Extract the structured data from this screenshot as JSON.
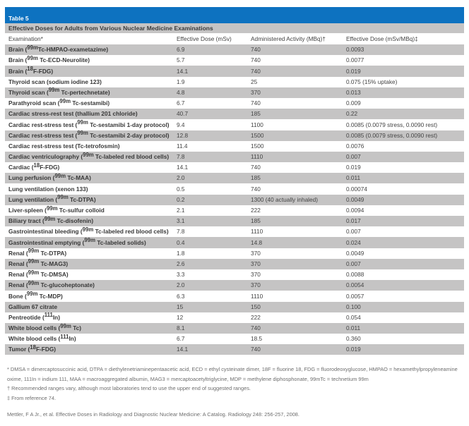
{
  "colors": {
    "accent_blue": "#0d72c0",
    "stripe_gray": "#c5c4c4"
  },
  "table": {
    "title": "Table 5",
    "subtitle": "Effective Doses for Adults from Various Nuclear Medicine Examinations",
    "columns": {
      "examination": "Examination*",
      "effective_dose": "Effective Dose (mSv)",
      "administered_activity": "Administered Activity (MBq)†",
      "effective_dose_per_mbq": "Effective Dose (mSv/MBq)‡"
    },
    "rows": [
      {
        "exam_pre": "Brain (",
        "exam_sup": "99m",
        "exam_post": "Tc-HMPAO-exametazime)",
        "dose": "6.9",
        "activity": "740",
        "per_mbq": "0.0093"
      },
      {
        "exam_pre": "Brain (",
        "exam_sup": "99m",
        "exam_post": " Tc-ECD-Neurolite)",
        "dose": "5.7",
        "activity": "740",
        "per_mbq": "0.0077"
      },
      {
        "exam_pre": "Brain (",
        "exam_sup": "18",
        "exam_post": "F-FDG)",
        "dose": "14.1",
        "activity": "740",
        "per_mbq": "0.019"
      },
      {
        "exam_pre": "Thyroid scan (sodium iodine 123)",
        "exam_sup": "",
        "exam_post": "",
        "dose": "1.9",
        "activity": "25",
        "per_mbq": "0.075 (15% uptake)"
      },
      {
        "exam_pre": "Thyroid scan (",
        "exam_sup": "99m",
        "exam_post": " Tc-pertechnetate)",
        "dose": "4.8",
        "activity": "370",
        "per_mbq": "0.013"
      },
      {
        "exam_pre": "Parathyroid scan (",
        "exam_sup": "99m",
        "exam_post": " Tc-sestamibi)",
        "dose": "6.7",
        "activity": "740",
        "per_mbq": "0.009"
      },
      {
        "exam_pre": "Cardiac stress-rest test (thallium 201 chloride)",
        "exam_sup": "",
        "exam_post": "",
        "dose": "40.7",
        "activity": "185",
        "per_mbq": "0.22"
      },
      {
        "exam_pre": "Cardiac rest-stress test (",
        "exam_sup": "99m",
        "exam_post": " Tc-sestamibi 1-day protocol)",
        "dose": "9.4",
        "activity": "1100",
        "per_mbq": "0.0085 (0.0079 stress, 0.0090 rest)"
      },
      {
        "exam_pre": "Cardiac rest-stress test (",
        "exam_sup": "99m",
        "exam_post": " Tc-sestamibi 2-day protocol)",
        "dose": "12.8",
        "activity": "1500",
        "per_mbq": "0.0085 (0.0079 stress, 0.0090 rest)"
      },
      {
        "exam_pre": "Cardiac rest-stress test (Tc-tetrofosmin)",
        "exam_sup": "",
        "exam_post": "",
        "dose": "11.4",
        "activity": "1500",
        "per_mbq": "0.0076"
      },
      {
        "exam_pre": "Cardiac ventriculography (",
        "exam_sup": "99m",
        "exam_post": " Tc-labeled red blood cells)",
        "dose": "7.8",
        "activity": "1110",
        "per_mbq": "0.007"
      },
      {
        "exam_pre": "Cardiac (",
        "exam_sup": "18",
        "exam_post": "F-FDG)",
        "dose": "14.1",
        "activity": "740",
        "per_mbq": "0.019"
      },
      {
        "exam_pre": "Lung perfusion (",
        "exam_sup": "99m",
        "exam_post": " Tc-MAA)",
        "dose": "2.0",
        "activity": "185",
        "per_mbq": "0.011"
      },
      {
        "exam_pre": "Lung ventilation (xenon 133)",
        "exam_sup": "",
        "exam_post": "",
        "dose": "0.5",
        "activity": "740",
        "per_mbq": "0.00074"
      },
      {
        "exam_pre": "Lung ventilation (",
        "exam_sup": "99m",
        "exam_post": " Tc-DTPA)",
        "dose": "0.2",
        "activity": "1300 (40 actually inhaled)",
        "per_mbq": "0.0049"
      },
      {
        "exam_pre": "Liver-spleen (",
        "exam_sup": "99m",
        "exam_post": " Tc-sulfur colloid",
        "dose": "2.1",
        "activity": "222",
        "per_mbq": "0.0094"
      },
      {
        "exam_pre": "Biliary tract (",
        "exam_sup": "99m",
        "exam_post": " Tc-disofenin)",
        "dose": "3.1",
        "activity": "185",
        "per_mbq": "0.017"
      },
      {
        "exam_pre": "Gastrointestinal bleeding (",
        "exam_sup": "99m",
        "exam_post": " Tc-labeled red blood cells)",
        "dose": "7.8",
        "activity": "1110",
        "per_mbq": "0.007"
      },
      {
        "exam_pre": "Gastrointestinal emptying (",
        "exam_sup": "99m",
        "exam_post": " Tc-labeled solids)",
        "dose": "0.4",
        "activity": "14.8",
        "per_mbq": "0.024"
      },
      {
        "exam_pre": "Renal (",
        "exam_sup": "99m",
        "exam_post": " Tc-DTPA)",
        "dose": "1.8",
        "activity": "370",
        "per_mbq": "0.0049"
      },
      {
        "exam_pre": "Renal (",
        "exam_sup": "99m",
        "exam_post": " Tc-MAG3)",
        "dose": "2.6",
        "activity": "370",
        "per_mbq": "0.007"
      },
      {
        "exam_pre": "Renal (",
        "exam_sup": "99m",
        "exam_post": " Tc-DMSA)",
        "dose": "3.3",
        "activity": "370",
        "per_mbq": "0.0088"
      },
      {
        "exam_pre": "Renal (",
        "exam_sup": "99m",
        "exam_post": " Tc-glucoheptonate)",
        "dose": "2.0",
        "activity": "370",
        "per_mbq": "0.0054"
      },
      {
        "exam_pre": "Bone (",
        "exam_sup": "99m",
        "exam_post": " Tc-MDP)",
        "dose": "6.3",
        "activity": "1110",
        "per_mbq": "0.0057"
      },
      {
        "exam_pre": "Gallium 67 citrate",
        "exam_sup": "",
        "exam_post": "",
        "dose": "15",
        "activity": "150",
        "per_mbq": "0.100"
      },
      {
        "exam_pre": "Pentreotide (",
        "exam_sup": "111",
        "exam_post": "In)",
        "dose": "12",
        "activity": "222",
        "per_mbq": "0.054"
      },
      {
        "exam_pre": "White blood cells (",
        "exam_sup": "99m",
        "exam_post": " Tc)",
        "dose": "8.1",
        "activity": "740",
        "per_mbq": "0.011"
      },
      {
        "exam_pre": "White blood cells (",
        "exam_sup": "111",
        "exam_post": "In)",
        "dose": "6.7",
        "activity": "18.5",
        "per_mbq": "0.360"
      },
      {
        "exam_pre": "Tumor (",
        "exam_sup": "18",
        "exam_post": "F-FDG)",
        "dose": "14.1",
        "activity": "740",
        "per_mbq": "0.019"
      }
    ]
  },
  "footnotes": [
    "*  DMSA = dimercaptosuccinic acid, DTPA = diethylenetriaminepentaacetic acid, ECD = ethyl cysteinate dimer, 18F = fluorine 18, FDG = fluorodeoxyglucose, HMPAO = hexamethylpropyleneamine oxime, 111In = indium 111, MAA = macroaggregated albumin, MAG3 = mercaptoacetyltriglycine, MDP = methylene diphosphonate, 99mTc = technetium 99m",
    "† Recommended ranges vary, although most laboratories tend to use the upper end of suggested ranges.",
    "‡ From reference 74."
  ],
  "citation": "Mettler, F A Jr., et al.  Effective Doses in Radiology and Diagnostic Nuclear Medicine: A Catalog.  Radiology 248: 256-257, 2008."
}
